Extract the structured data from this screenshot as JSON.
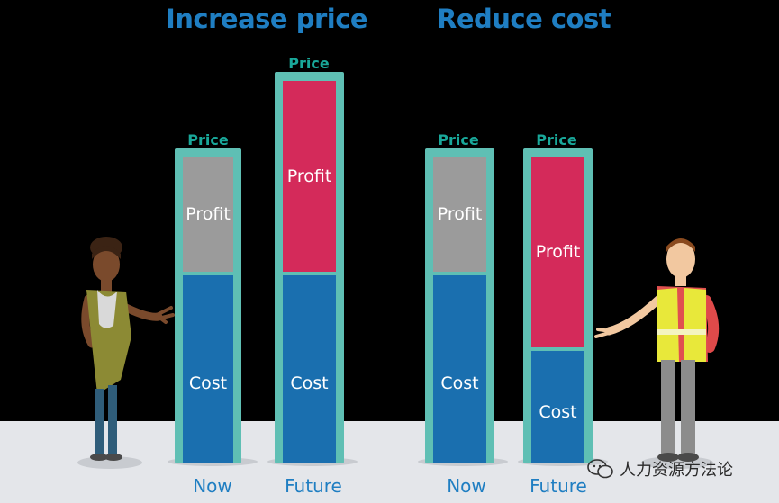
{
  "headings": {
    "left": "Increase price",
    "right": "Reduce cost"
  },
  "columns": [
    {
      "price_label": "Price",
      "profit_label": "Profit",
      "cost_label": "Cost",
      "axis_label": "Now"
    },
    {
      "price_label": "Price",
      "profit_label": "Profit",
      "cost_label": "Cost",
      "axis_label": "Future"
    },
    {
      "price_label": "Price",
      "profit_label": "Profit",
      "cost_label": "Cost",
      "axis_label": "Now"
    },
    {
      "price_label": "Price",
      "profit_label": "Profit",
      "cost_label": "Cost",
      "axis_label": "Future"
    }
  ],
  "watermark": {
    "text": "人力资源方法论"
  },
  "colors": {
    "heading": "#1f7ec2",
    "price_label": "#19a89a",
    "frame": "#5fbfb4",
    "profit_now": "#9b9b9b",
    "profit_future": "#d42a5a",
    "cost": "#1a6faf",
    "floor": "#e4e6ea"
  },
  "icons": [
    "woman-figure",
    "man-safety-vest-figure",
    "wechat-icon"
  ]
}
